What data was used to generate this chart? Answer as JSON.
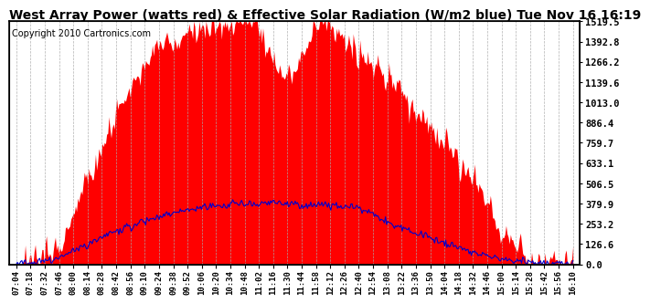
{
  "title": "West Array Power (watts red) & Effective Solar Radiation (W/m2 blue) Tue Nov 16 16:19",
  "copyright": "Copyright 2010 Cartronics.com",
  "yticks": [
    0.0,
    126.6,
    253.2,
    379.9,
    506.5,
    633.1,
    759.7,
    886.4,
    1013.0,
    1139.6,
    1266.2,
    1392.8,
    1519.5
  ],
  "ymax": 1519.5,
  "ymin": 0.0,
  "bg_color": "#ffffff",
  "fill_color": "#ff0000",
  "line_color": "#0000cc",
  "title_fontsize": 10,
  "copyright_fontsize": 7,
  "grid_color": "#aaaaaa",
  "xtick_labels": [
    "07:04",
    "07:18",
    "07:32",
    "07:46",
    "08:00",
    "08:14",
    "08:28",
    "08:42",
    "08:56",
    "09:10",
    "09:24",
    "09:38",
    "09:52",
    "10:06",
    "10:20",
    "10:34",
    "10:48",
    "11:02",
    "11:16",
    "11:30",
    "11:44",
    "11:58",
    "12:12",
    "12:26",
    "12:40",
    "12:54",
    "13:08",
    "13:22",
    "13:36",
    "13:50",
    "14:04",
    "14:18",
    "14:32",
    "14:46",
    "15:00",
    "15:14",
    "15:28",
    "15:42",
    "15:56",
    "16:10"
  ]
}
